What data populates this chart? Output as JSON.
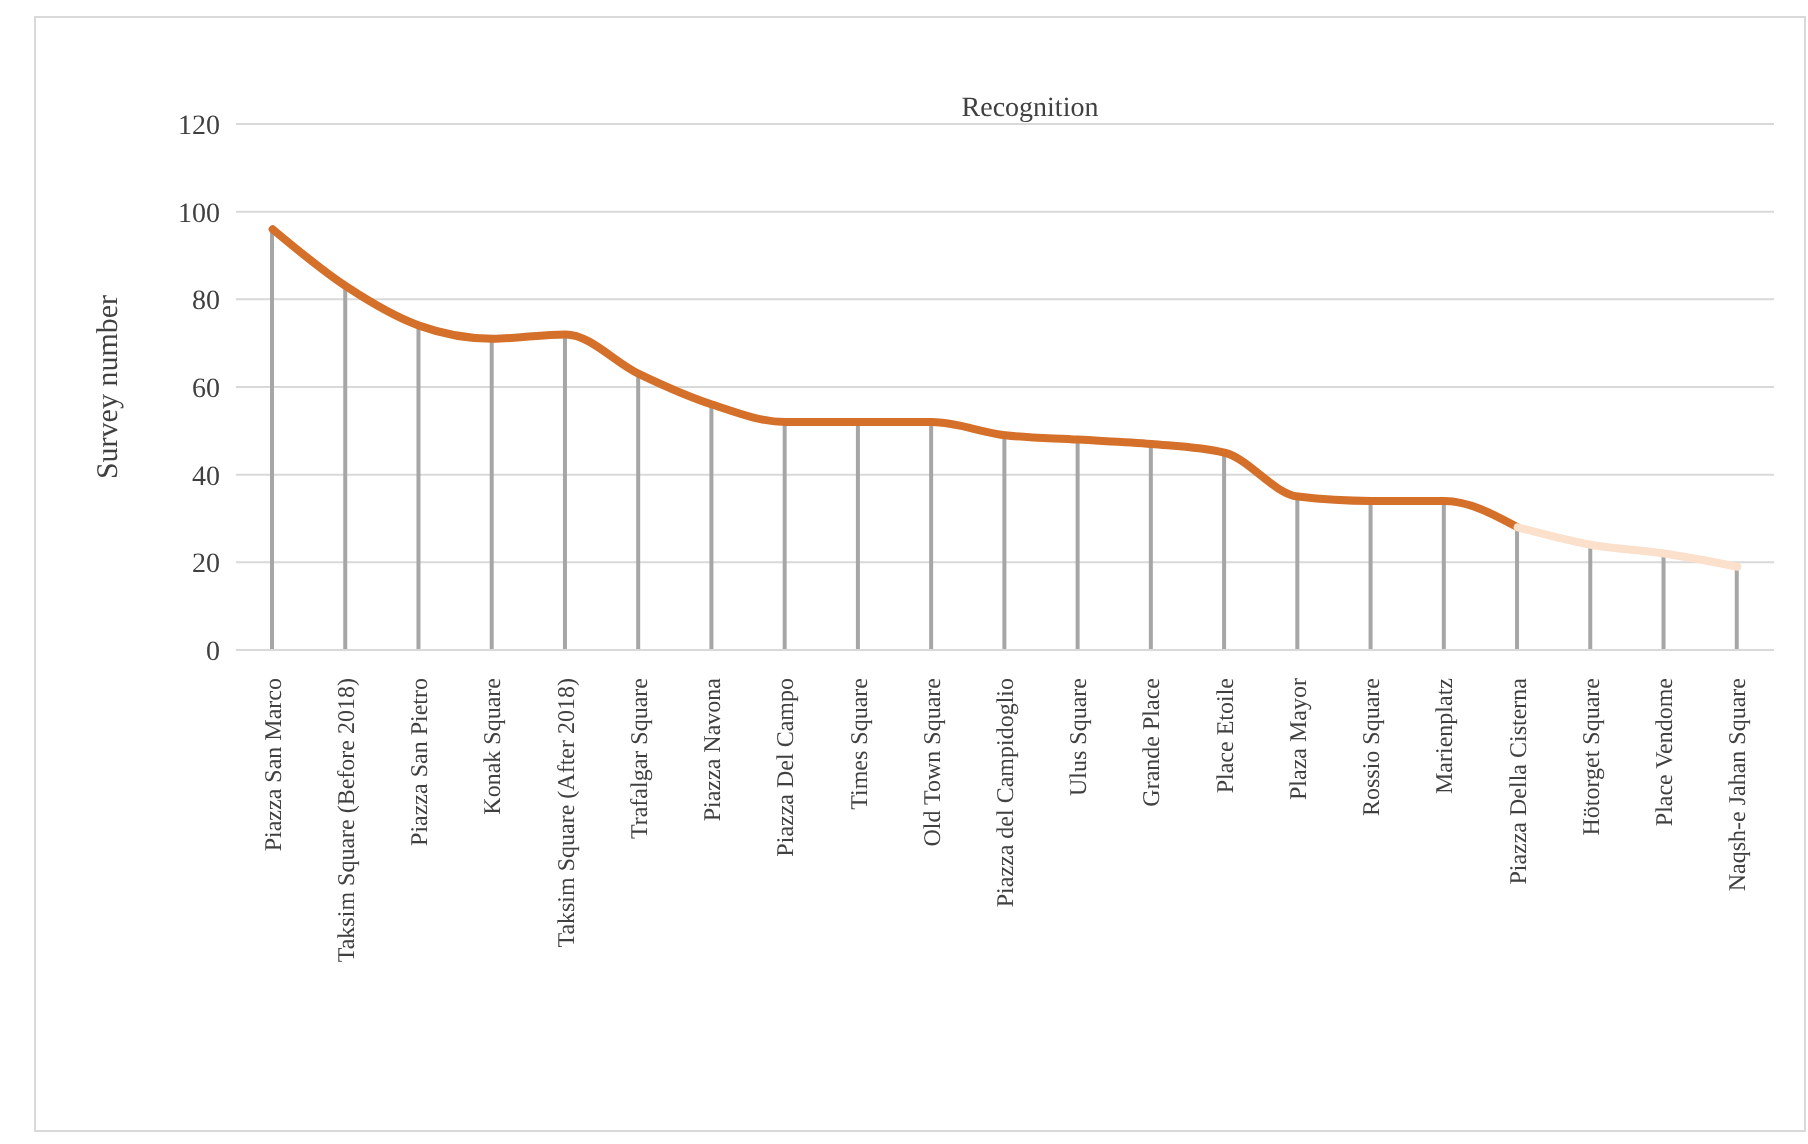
{
  "chart_data": {
    "type": "line",
    "title": "Recognition",
    "ylabel": "Survey number",
    "categories": [
      "Piazza San Marco",
      "Taksim Square (Before 2018)",
      "Piazza San Pietro",
      "Konak Square",
      "Taksim Square (After 2018)",
      "Trafalgar Square",
      "Piazza Navona",
      "Piazza Del Campo",
      "Times Square",
      "Old Town Square",
      "Piazza del Campidoglio",
      "Ulus Square",
      "Grande Place",
      "Place Etoile",
      "Plaza Mayor",
      "Rossio Square",
      "Marienplatz",
      "Piazza Della Cisterna",
      "Hötorget Square",
      "Place Vendome",
      "Naqsh-e Jahan Square"
    ],
    "series": [
      {
        "type": "bar",
        "color": "#a6a6a6",
        "values": [
          96,
          83,
          74,
          71,
          72,
          63,
          56,
          52,
          52,
          52,
          49,
          48,
          47,
          45,
          35,
          34,
          34,
          28,
          24,
          22,
          19
        ]
      },
      {
        "color": "#d4702a",
        "values": [
          96,
          83,
          74,
          71,
          72,
          63,
          56,
          52,
          52,
          52,
          49,
          48,
          47,
          45,
          35,
          34,
          34,
          28,
          null,
          null,
          null
        ]
      },
      {
        "color": "#fbe0cc",
        "values": [
          null,
          null,
          null,
          null,
          null,
          null,
          null,
          null,
          null,
          null,
          null,
          null,
          null,
          null,
          null,
          null,
          null,
          28,
          24,
          22,
          19
        ]
      }
    ],
    "ylim": [
      0,
      120
    ],
    "yticks": [
      0,
      20,
      40,
      60,
      80,
      100,
      120
    ],
    "grid": "y",
    "marker": "none"
  }
}
